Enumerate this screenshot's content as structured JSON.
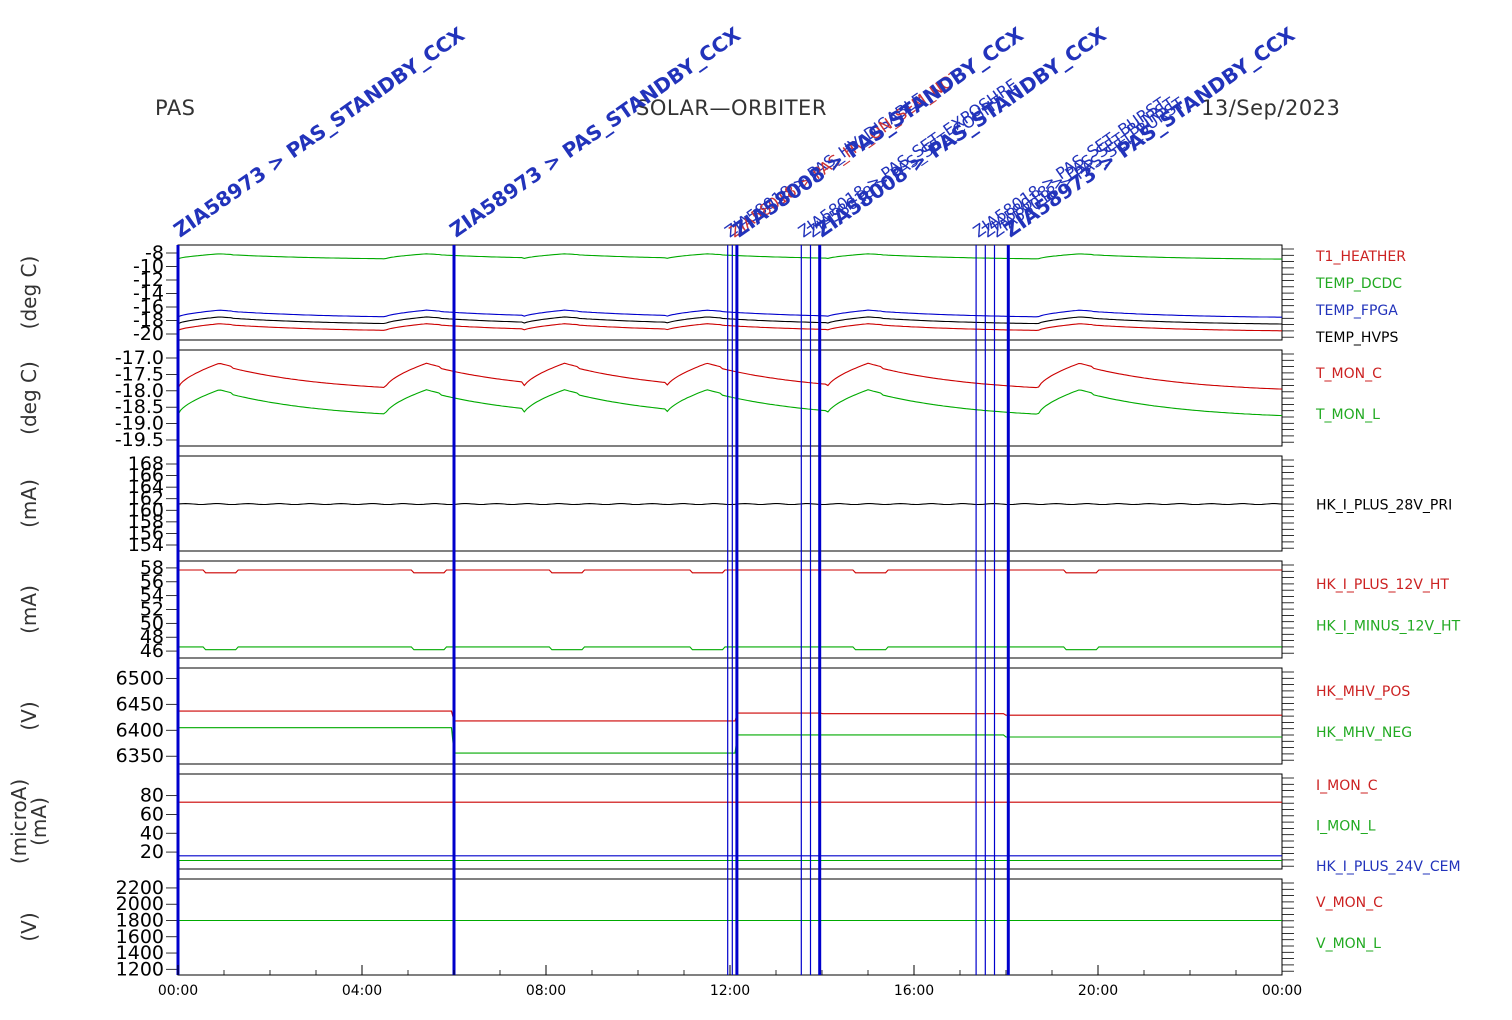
{
  "header": {
    "left": "PAS",
    "center": "SOLAR—ORBITER",
    "right": "13/Sep/2023"
  },
  "colors": {
    "red": "#cc0000",
    "green": "#00aa00",
    "blue": "#0000cc",
    "black": "#000000",
    "label_red": "#cc2222",
    "label_green": "#22aa22",
    "label_blue": "#2233bb"
  },
  "chart_data": {
    "type": "line",
    "x_axis": {
      "range": [
        "00:00",
        "24:00"
      ],
      "tick_labels": [
        "00:00",
        "04:00",
        "08:00",
        "12:00",
        "16:00",
        "20:00",
        "00:00"
      ]
    },
    "markers": [
      {
        "t": 0.0,
        "heavy": true,
        "label": "ZIA58973 > PAS_STANDBY_CCX"
      },
      {
        "t": 6.0,
        "heavy": true,
        "label": "ZIA58973 > PAS_STANDBY_CCX"
      },
      {
        "t": 11.95,
        "heavy": false,
        "label": "ZIA58018 > PAS_HV_DISABLE"
      },
      {
        "t": 12.05,
        "heavy": false,
        "label": "ZIA58018 > PAS_HV_ON_SEM_NOT"
      },
      {
        "t": 12.15,
        "heavy": true,
        "label": "ZIA58008 > PAS_STANDBY_CCX"
      },
      {
        "t": 13.55,
        "heavy": false,
        "label": "ZIA58018 > PAS_SET_EXPOSURE"
      },
      {
        "t": 13.75,
        "heavy": false,
        "label": "ZIA58018 > PAS_SET_COUNT"
      },
      {
        "t": 13.95,
        "heavy": true,
        "label": "ZIA58008 > PAS_STANDBY_CCX"
      },
      {
        "t": 17.35,
        "heavy": false,
        "label": "ZIA58018 > PAS_SET_BURST"
      },
      {
        "t": 17.55,
        "heavy": false,
        "label": "ZIA58018 > PAS_SET_BURST"
      },
      {
        "t": 17.75,
        "heavy": false,
        "label": "ZIA58018 > PAS_SET_BURST"
      },
      {
        "t": 18.05,
        "heavy": true,
        "label": "ZIA58973 > PAS_STANDBY_CCX"
      }
    ],
    "panels": [
      {
        "ylabel": "(deg C)",
        "ticks": [
          "-8",
          "-10",
          "-12",
          "-14",
          "-16",
          "-18",
          "-20"
        ],
        "ylim": [
          -21,
          -7
        ],
        "series": [
          {
            "name": "T1_HEATHER",
            "color": "red",
            "base": -19.8,
            "amp": 1.2
          },
          {
            "name": "TEMP_DCDC",
            "color": "green",
            "base": -9.2,
            "amp": 0.9
          },
          {
            "name": "TEMP_FPGA",
            "color": "blue",
            "base": -17.8,
            "amp": 1.2
          },
          {
            "name": "TEMP_HVPS",
            "color": "black",
            "base": -18.8,
            "amp": 1.2
          }
        ]
      },
      {
        "ylabel": "(deg C)",
        "ticks": [
          "-17.0",
          "-17.5",
          "-18.0",
          "-18.5",
          "-19.0",
          "-19.5"
        ],
        "ylim": [
          -19.7,
          -16.8
        ],
        "series": [
          {
            "name": "T_MON_C",
            "color": "red",
            "base": -18.1,
            "amp": 0.9
          },
          {
            "name": "T_MON_L",
            "color": "green",
            "base": -18.9,
            "amp": 0.9
          }
        ]
      },
      {
        "ylabel": "(mA)",
        "ticks": [
          "168",
          "166",
          "164",
          "162",
          "160",
          "158",
          "156",
          "154"
        ],
        "ylim": [
          152.5,
          169.5
        ],
        "series": [
          {
            "name": "HK_I_PLUS_28V_PRI",
            "color": "black",
            "base": 160.9,
            "amp": 0.1
          }
        ]
      },
      {
        "ylabel": "(mA)",
        "ticks": [
          "58",
          "56",
          "54",
          "52",
          "50",
          "48",
          "46"
        ],
        "ylim": [
          45.0,
          59.0
        ],
        "series": [
          {
            "name": "HK_I_PLUS_12V_HT",
            "color": "red",
            "base": 57.7,
            "amp": 0.5
          },
          {
            "name": "HK_I_MINUS_12V_HT",
            "color": "green",
            "base": 46.6,
            "amp": 0.5
          }
        ]
      },
      {
        "ylabel": "(V)",
        "ticks": [
          "6500",
          "6450",
          "6400",
          "6350"
        ],
        "ylim": [
          6335,
          6520
        ],
        "series": [
          {
            "name": "HK_MHV_POS",
            "color": "red",
            "base": 6437,
            "amp": 0
          },
          {
            "name": "HK_MHV_NEG",
            "color": "green",
            "base": 6405,
            "amp": 0
          }
        ]
      },
      {
        "ylabel": "(microA)\n(mA)",
        "ticks": [
          "80",
          "60",
          "40",
          "20"
        ],
        "ylim": [
          2,
          103
        ],
        "series": [
          {
            "name": "I_MON_C",
            "color": "red",
            "base": 73,
            "amp": 0.5
          },
          {
            "name": "I_MON_L",
            "color": "green",
            "base": 11,
            "amp": 0
          },
          {
            "name": "HK_I_PLUS_24V_CEM",
            "color": "blue",
            "base": 16,
            "amp": 0
          }
        ]
      },
      {
        "ylabel": "(V)",
        "ticks": [
          "2200",
          "2000",
          "1800",
          "1600",
          "1400",
          "1200"
        ],
        "ylim": [
          1130,
          2310
        ],
        "series": [
          {
            "name": "V_MON_C",
            "color": "red",
            "base": 1800,
            "amp": 0
          },
          {
            "name": "V_MON_L",
            "color": "green",
            "base": 1800,
            "amp": 0
          }
        ]
      }
    ]
  }
}
